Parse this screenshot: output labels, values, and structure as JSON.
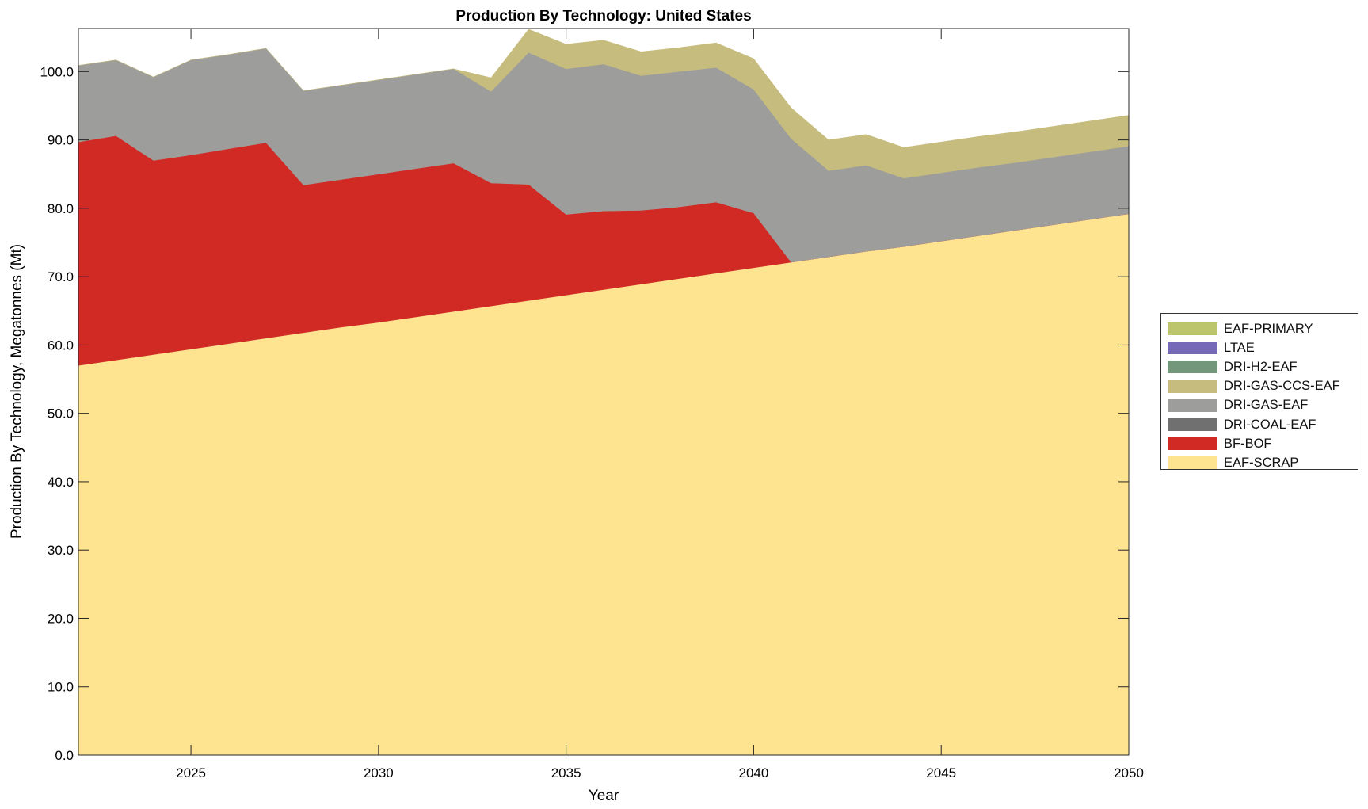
{
  "chart_data": {
    "type": "area",
    "stacked": true,
    "title": "Production By Technology: United States",
    "xlabel": "Year",
    "ylabel": "Production By Technology, Megatonnes (Mt)",
    "xlim": [
      2022,
      2050
    ],
    "ylim": [
      0,
      106.3
    ],
    "xticks": [
      2025,
      2030,
      2035,
      2040,
      2045,
      2050
    ],
    "yticks": [
      "0.0",
      "10.0",
      "20.0",
      "30.0",
      "40.0",
      "50.0",
      "60.0",
      "70.0",
      "80.0",
      "90.0",
      "100.0"
    ],
    "grid": false,
    "legend_position": "right",
    "x": [
      2022,
      2023,
      2024,
      2025,
      2026,
      2027,
      2028,
      2029,
      2030,
      2031,
      2032,
      2033,
      2034,
      2035,
      2036,
      2037,
      2038,
      2039,
      2040,
      2041,
      2042,
      2043,
      2044,
      2045,
      2046,
      2047,
      2048,
      2049,
      2050
    ],
    "series": [
      {
        "name": "EAF-SCRAP",
        "color": "#fee391",
        "values": [
          57.0,
          57.8,
          58.6,
          59.4,
          60.2,
          61.0,
          61.8,
          62.6,
          63.3,
          64.1,
          64.9,
          65.7,
          66.5,
          67.3,
          68.1,
          68.9,
          69.7,
          70.5,
          71.3,
          72.1,
          72.9,
          73.7,
          74.4,
          75.2,
          76.0,
          76.8,
          77.6,
          78.4,
          79.2
        ]
      },
      {
        "name": "BF-BOF",
        "color": "#d12a25",
        "values": [
          32.7,
          32.8,
          28.4,
          28.4,
          28.5,
          28.6,
          21.6,
          21.6,
          21.7,
          21.7,
          21.7,
          18.0,
          17.0,
          11.8,
          11.5,
          10.8,
          10.5,
          10.4,
          8.0,
          0,
          0,
          0,
          0,
          0,
          0,
          0,
          0,
          0,
          0
        ]
      },
      {
        "name": "DRI-COAL-EAF",
        "color": "#707070",
        "values": [
          0,
          0,
          0,
          0,
          0,
          0,
          0,
          0,
          0,
          0,
          0,
          0,
          0,
          0,
          0,
          0,
          0,
          0,
          0,
          0,
          0,
          0,
          0,
          0,
          0,
          0,
          0,
          0,
          0
        ]
      },
      {
        "name": "DRI-GAS-EAF",
        "color": "#9d9d9b",
        "values": [
          11.2,
          11.1,
          12.2,
          13.9,
          13.8,
          13.8,
          13.8,
          13.8,
          13.8,
          13.8,
          13.8,
          13.4,
          19.3,
          21.3,
          21.5,
          19.7,
          19.8,
          19.7,
          18.1,
          18.1,
          12.6,
          12.6,
          10.0,
          10.0,
          10.0,
          9.9,
          9.9,
          9.9,
          9.9
        ]
      },
      {
        "name": "DRI-GAS-CCS-EAF",
        "color": "#c6bc7d",
        "values": [
          0,
          0,
          0,
          0,
          0,
          0,
          0,
          0,
          0,
          0,
          0,
          2.0,
          3.4,
          3.6,
          3.5,
          3.5,
          3.5,
          3.6,
          4.5,
          4.5,
          4.5,
          4.5,
          4.5,
          4.5,
          4.5,
          4.5,
          4.5,
          4.5,
          4.5
        ]
      },
      {
        "name": "DRI-H2-EAF",
        "color": "#72977b",
        "values": [
          0,
          0,
          0,
          0,
          0,
          0,
          0,
          0,
          0,
          0,
          0,
          0,
          0,
          0,
          0,
          0,
          0,
          0,
          0,
          0,
          0,
          0,
          0,
          0,
          0,
          0,
          0,
          0,
          0
        ]
      },
      {
        "name": "LTAE",
        "color": "#7569b8",
        "values": [
          0,
          0,
          0,
          0,
          0,
          0,
          0,
          0,
          0,
          0,
          0,
          0,
          0,
          0,
          0,
          0,
          0,
          0,
          0,
          0,
          0,
          0,
          0,
          0,
          0,
          0,
          0,
          0,
          0
        ]
      },
      {
        "name": "EAF-PRIMARY",
        "color": "#bcc56b",
        "values": [
          0,
          0,
          0,
          0,
          0,
          0,
          0,
          0,
          0,
          0,
          0,
          0,
          0,
          0,
          0,
          0,
          0,
          0,
          0,
          0,
          0,
          0,
          0,
          0,
          0,
          0,
          0,
          0,
          0
        ]
      }
    ],
    "legend_order": [
      "EAF-PRIMARY",
      "LTAE",
      "DRI-H2-EAF",
      "DRI-GAS-CCS-EAF",
      "DRI-GAS-EAF",
      "DRI-COAL-EAF",
      "BF-BOF",
      "EAF-SCRAP"
    ]
  }
}
